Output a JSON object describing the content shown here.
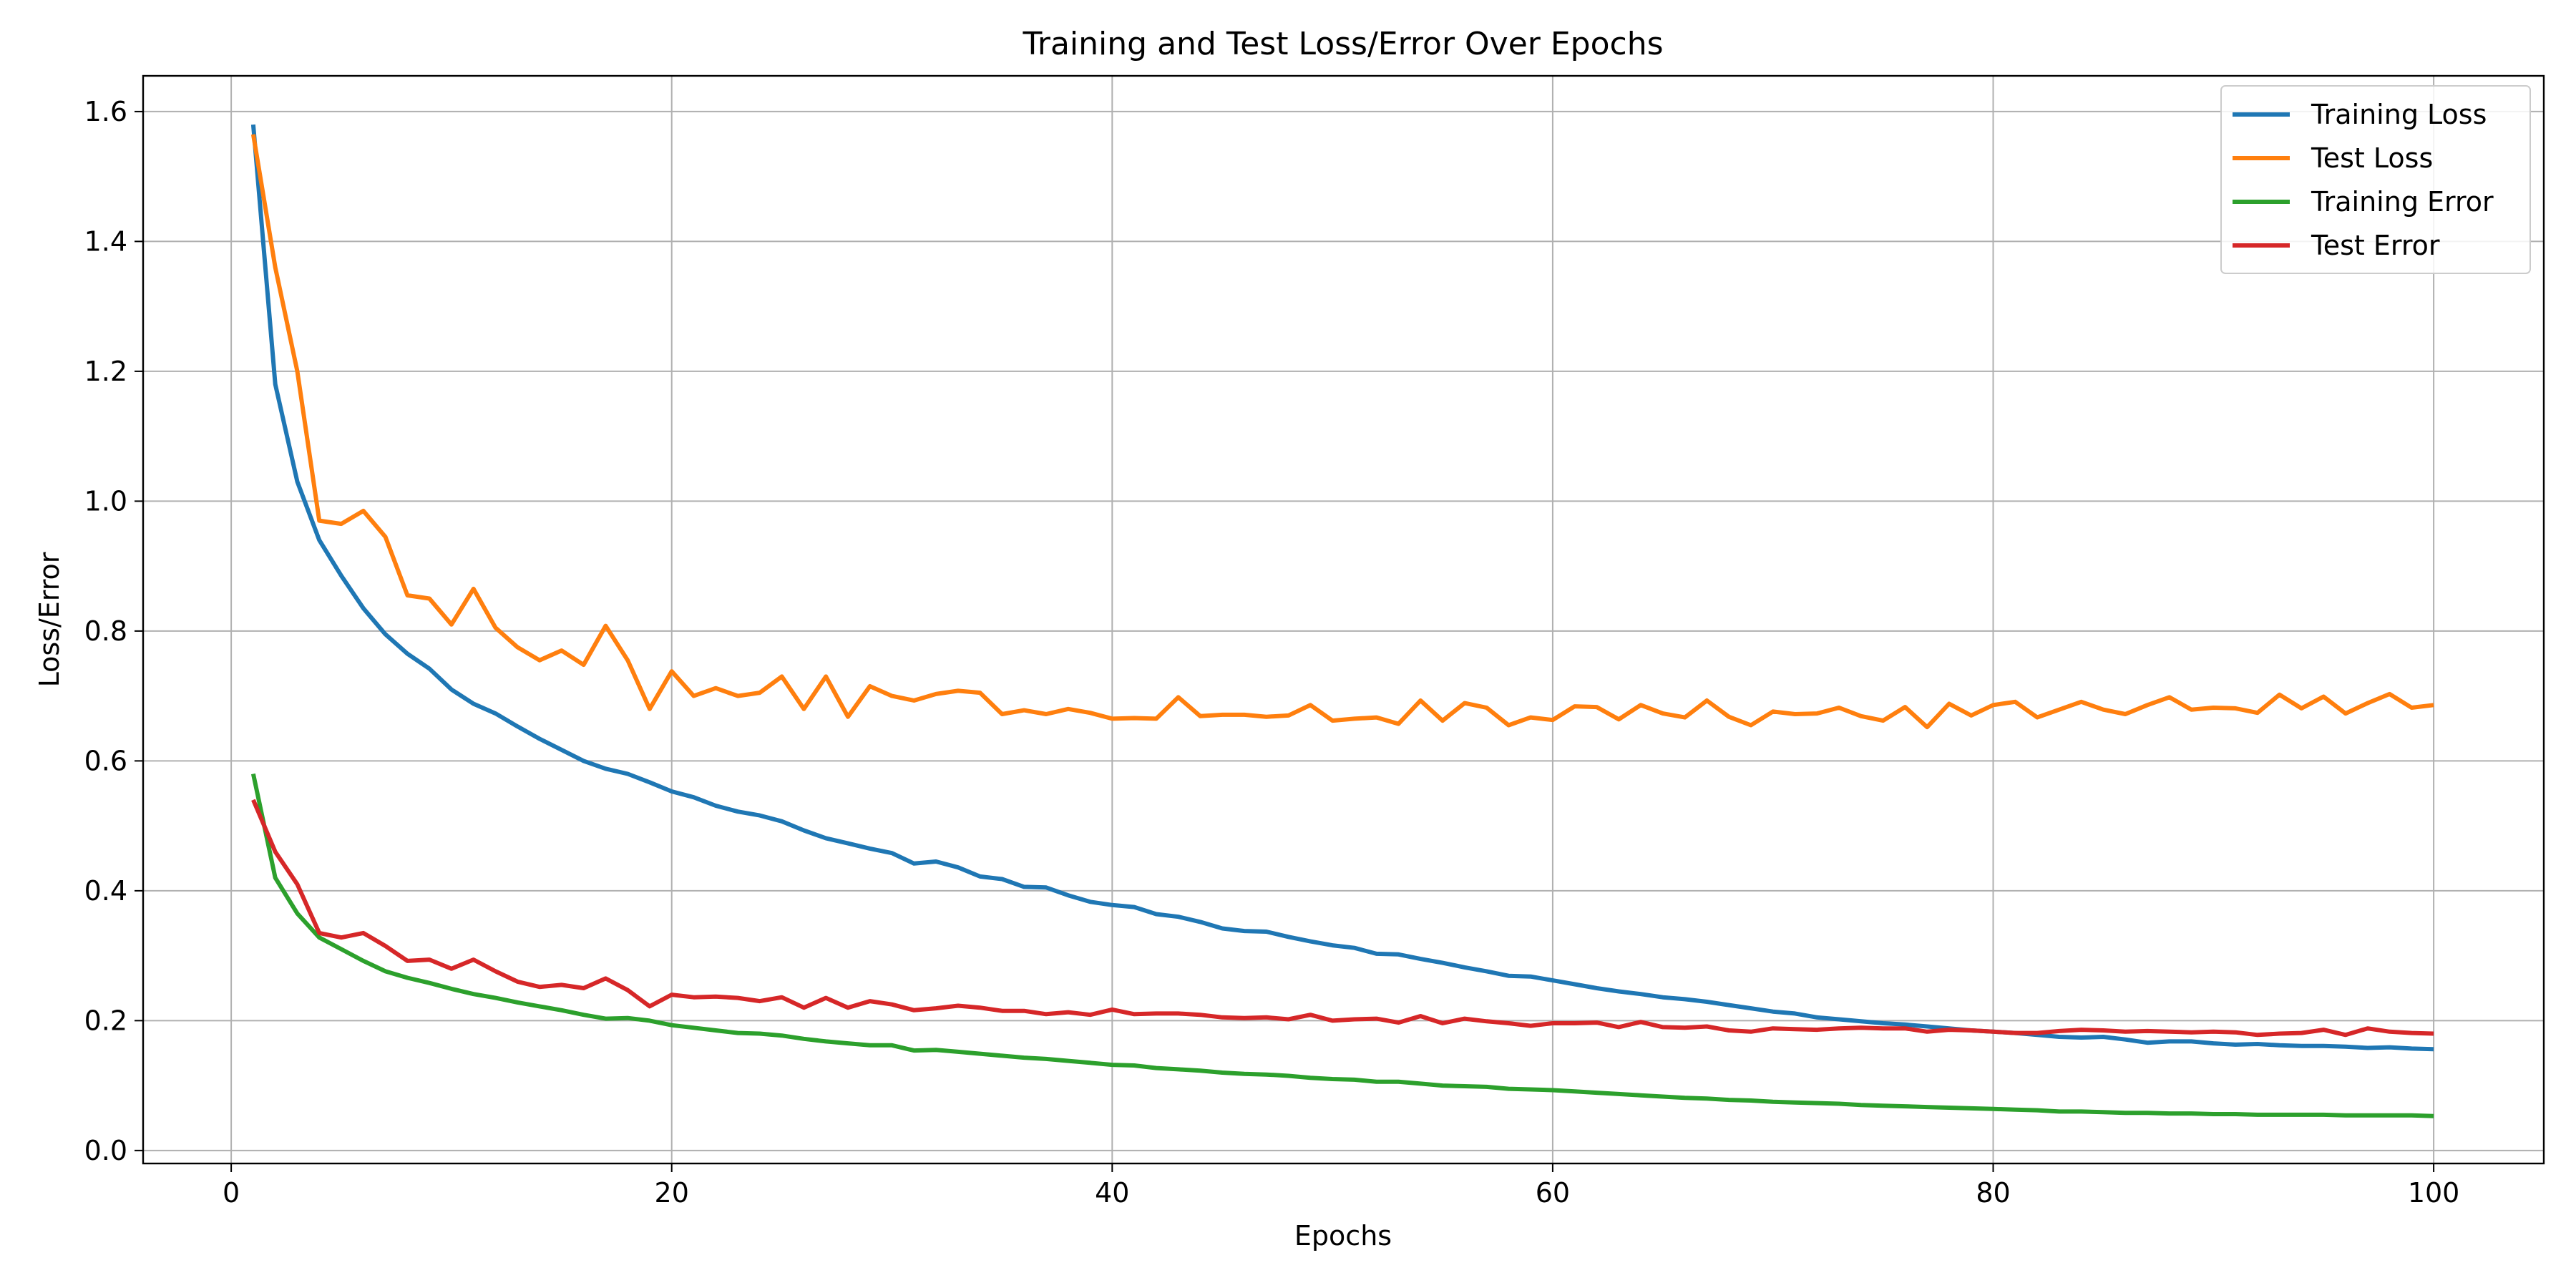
{
  "chart_data": {
    "type": "line",
    "title": "Training and Test Loss/Error Over Epochs",
    "xlabel": "Epochs",
    "ylabel": "Loss/Error",
    "xlim": [
      -4,
      105
    ],
    "ylim": [
      -0.02,
      1.655
    ],
    "xticks": [
      0,
      20,
      40,
      60,
      80,
      100
    ],
    "xtick_labels": [
      "0",
      "20",
      "40",
      "60",
      "80",
      "100"
    ],
    "yticks": [
      0.0,
      0.2,
      0.4,
      0.6,
      0.8,
      1.0,
      1.2,
      1.4,
      1.6
    ],
    "ytick_labels": [
      "0.0",
      "0.2",
      "0.4",
      "0.6",
      "0.8",
      "1.0",
      "1.2",
      "1.4",
      "1.6"
    ],
    "grid": true,
    "legend_position": "top-right",
    "epochs_start": 1,
    "series": [
      {
        "name": "Training Loss",
        "color": "#1f77b4",
        "values": [
          1.58,
          1.18,
          1.03,
          0.94,
          0.885,
          0.835,
          0.795,
          0.765,
          0.742,
          0.71,
          0.688,
          0.673,
          0.653,
          0.634,
          0.617,
          0.6,
          0.588,
          0.58,
          0.567,
          0.553,
          0.544,
          0.531,
          0.522,
          0.516,
          0.507,
          0.493,
          0.481,
          0.473,
          0.465,
          0.458,
          0.442,
          0.445,
          0.436,
          0.422,
          0.418,
          0.406,
          0.405,
          0.393,
          0.383,
          0.378,
          0.375,
          0.364,
          0.36,
          0.352,
          0.342,
          0.338,
          0.337,
          0.329,
          0.322,
          0.316,
          0.312,
          0.303,
          0.302,
          0.295,
          0.289,
          0.282,
          0.276,
          0.269,
          0.268,
          0.262,
          0.256,
          0.25,
          0.245,
          0.241,
          0.236,
          0.233,
          0.229,
          0.224,
          0.219,
          0.214,
          0.211,
          0.205,
          0.202,
          0.199,
          0.196,
          0.194,
          0.191,
          0.188,
          0.185,
          0.183,
          0.181,
          0.178,
          0.175,
          0.174,
          0.175,
          0.171,
          0.166,
          0.168,
          0.168,
          0.165,
          0.163,
          0.164,
          0.162,
          0.161,
          0.161,
          0.16,
          0.158,
          0.159,
          0.157,
          0.156
        ]
      },
      {
        "name": "Test Loss",
        "color": "#ff7f0e",
        "values": [
          1.565,
          1.36,
          1.2,
          0.97,
          0.965,
          0.985,
          0.945,
          0.855,
          0.85,
          0.81,
          0.865,
          0.805,
          0.775,
          0.755,
          0.77,
          0.748,
          0.808,
          0.755,
          0.68,
          0.738,
          0.7,
          0.712,
          0.7,
          0.705,
          0.73,
          0.68,
          0.73,
          0.668,
          0.715,
          0.7,
          0.693,
          0.703,
          0.708,
          0.705,
          0.672,
          0.678,
          0.672,
          0.68,
          0.674,
          0.665,
          0.666,
          0.665,
          0.698,
          0.669,
          0.671,
          0.671,
          0.668,
          0.67,
          0.686,
          0.662,
          0.665,
          0.667,
          0.657,
          0.693,
          0.662,
          0.689,
          0.682,
          0.655,
          0.667,
          0.663,
          0.684,
          0.683,
          0.664,
          0.686,
          0.673,
          0.667,
          0.693,
          0.668,
          0.655,
          0.676,
          0.672,
          0.673,
          0.682,
          0.669,
          0.662,
          0.683,
          0.652,
          0.688,
          0.67,
          0.686,
          0.691,
          0.667,
          0.679,
          0.691,
          0.679,
          0.672,
          0.686,
          0.698,
          0.679,
          0.682,
          0.681,
          0.674,
          0.702,
          0.681,
          0.699,
          0.673,
          0.689,
          0.703,
          0.682,
          0.686
        ]
      },
      {
        "name": "Training Error",
        "color": "#2ca02c",
        "values": [
          0.58,
          0.42,
          0.365,
          0.328,
          0.31,
          0.292,
          0.276,
          0.266,
          0.258,
          0.249,
          0.241,
          0.235,
          0.228,
          0.222,
          0.216,
          0.209,
          0.203,
          0.204,
          0.2,
          0.193,
          0.189,
          0.185,
          0.181,
          0.18,
          0.177,
          0.172,
          0.168,
          0.165,
          0.162,
          0.162,
          0.154,
          0.155,
          0.152,
          0.149,
          0.146,
          0.143,
          0.141,
          0.138,
          0.135,
          0.132,
          0.131,
          0.127,
          0.125,
          0.123,
          0.12,
          0.118,
          0.117,
          0.115,
          0.112,
          0.11,
          0.109,
          0.106,
          0.106,
          0.103,
          0.1,
          0.099,
          0.098,
          0.095,
          0.094,
          0.093,
          0.091,
          0.089,
          0.087,
          0.085,
          0.083,
          0.081,
          0.08,
          0.078,
          0.077,
          0.075,
          0.074,
          0.073,
          0.072,
          0.07,
          0.069,
          0.068,
          0.067,
          0.066,
          0.065,
          0.064,
          0.063,
          0.062,
          0.06,
          0.06,
          0.059,
          0.058,
          0.058,
          0.057,
          0.057,
          0.056,
          0.056,
          0.055,
          0.055,
          0.055,
          0.055,
          0.054,
          0.054,
          0.054,
          0.054,
          0.053
        ]
      },
      {
        "name": "Test Error",
        "color": "#d62728",
        "values": [
          0.54,
          0.46,
          0.41,
          0.335,
          0.328,
          0.335,
          0.315,
          0.292,
          0.294,
          0.28,
          0.294,
          0.276,
          0.26,
          0.252,
          0.255,
          0.25,
          0.265,
          0.247,
          0.222,
          0.24,
          0.236,
          0.237,
          0.235,
          0.23,
          0.236,
          0.22,
          0.235,
          0.22,
          0.23,
          0.225,
          0.216,
          0.219,
          0.223,
          0.22,
          0.215,
          0.215,
          0.21,
          0.213,
          0.209,
          0.217,
          0.21,
          0.211,
          0.211,
          0.209,
          0.205,
          0.204,
          0.205,
          0.202,
          0.209,
          0.2,
          0.202,
          0.203,
          0.197,
          0.207,
          0.196,
          0.203,
          0.199,
          0.196,
          0.192,
          0.196,
          0.196,
          0.197,
          0.19,
          0.198,
          0.19,
          0.189,
          0.191,
          0.185,
          0.183,
          0.188,
          0.187,
          0.186,
          0.188,
          0.189,
          0.188,
          0.188,
          0.183,
          0.186,
          0.185,
          0.183,
          0.181,
          0.181,
          0.184,
          0.186,
          0.185,
          0.183,
          0.184,
          0.183,
          0.182,
          0.183,
          0.182,
          0.178,
          0.18,
          0.181,
          0.186,
          0.178,
          0.188,
          0.183,
          0.181,
          0.18
        ]
      }
    ]
  }
}
